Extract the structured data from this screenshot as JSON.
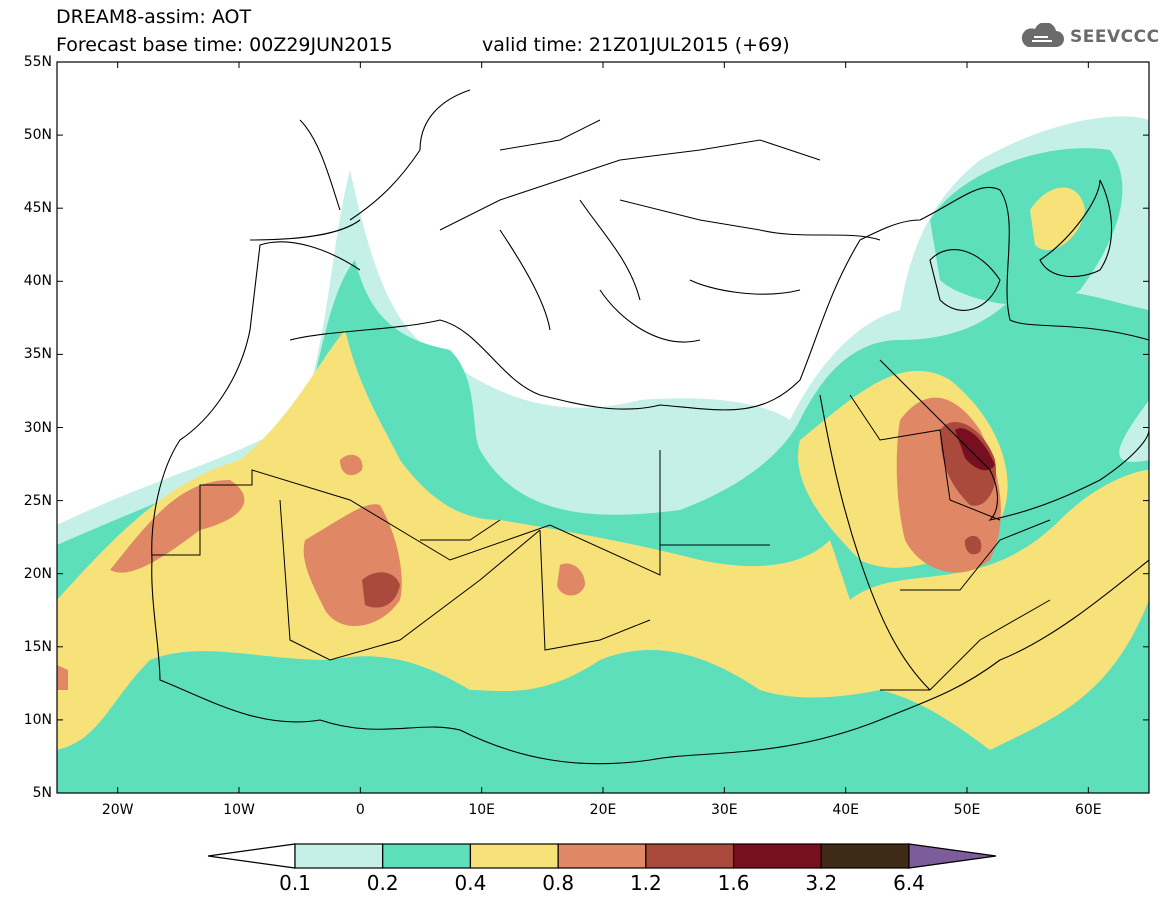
{
  "header": {
    "title": "DREAM8-assim: AOT",
    "forecast": "Forecast base time: 00Z29JUN2015",
    "valid": "valid time: 21Z01JUL2015 (+69)"
  },
  "logo": {
    "text": "SEEVCCC",
    "icon": "cloud-icon",
    "color": "#6b6b6b"
  },
  "map": {
    "lon_range": [
      -25,
      65
    ],
    "lat_range": [
      5,
      55
    ],
    "x_ticks": [
      {
        "lon": -20,
        "label": "20W"
      },
      {
        "lon": -10,
        "label": "10W"
      },
      {
        "lon": 0,
        "label": "0"
      },
      {
        "lon": 10,
        "label": "10E"
      },
      {
        "lon": 20,
        "label": "20E"
      },
      {
        "lon": 30,
        "label": "30E"
      },
      {
        "lon": 40,
        "label": "40E"
      },
      {
        "lon": 50,
        "label": "50E"
      },
      {
        "lon": 60,
        "label": "60E"
      }
    ],
    "y_ticks": [
      {
        "lat": 55,
        "label": "55N"
      },
      {
        "lat": 50,
        "label": "50N"
      },
      {
        "lat": 45,
        "label": "45N"
      },
      {
        "lat": 40,
        "label": "40N"
      },
      {
        "lat": 35,
        "label": "35N"
      },
      {
        "lat": 30,
        "label": "30N"
      },
      {
        "lat": 25,
        "label": "25N"
      },
      {
        "lat": 20,
        "label": "20N"
      },
      {
        "lat": 15,
        "label": "15N"
      },
      {
        "lat": 10,
        "label": "10N"
      },
      {
        "lat": 5,
        "label": "5N"
      }
    ],
    "field": "AOT",
    "colors": {
      "lt_0.1": "#ffffff",
      "0.1-0.2": "#c4f0e8",
      "0.2-0.4": "#5ddfbb",
      "0.4-0.8": "#f7e27a",
      "0.8-1.2": "#e08866",
      "1.2-1.6": "#a94a3c",
      "1.6-3.2": "#780f20",
      "3.2-6.4": "#3f2a17",
      "gt_6.4": "#7d5c9c"
    }
  },
  "colorbar": {
    "boundaries": [
      "0.1",
      "0.2",
      "0.4",
      "0.8",
      "1.2",
      "1.6",
      "3.2",
      "6.4"
    ],
    "colors": [
      "#ffffff",
      "#c4f0e8",
      "#5ddfbb",
      "#f7e27a",
      "#e08866",
      "#a94a3c",
      "#780f20",
      "#3f2a17",
      "#7d5c9c"
    ]
  }
}
